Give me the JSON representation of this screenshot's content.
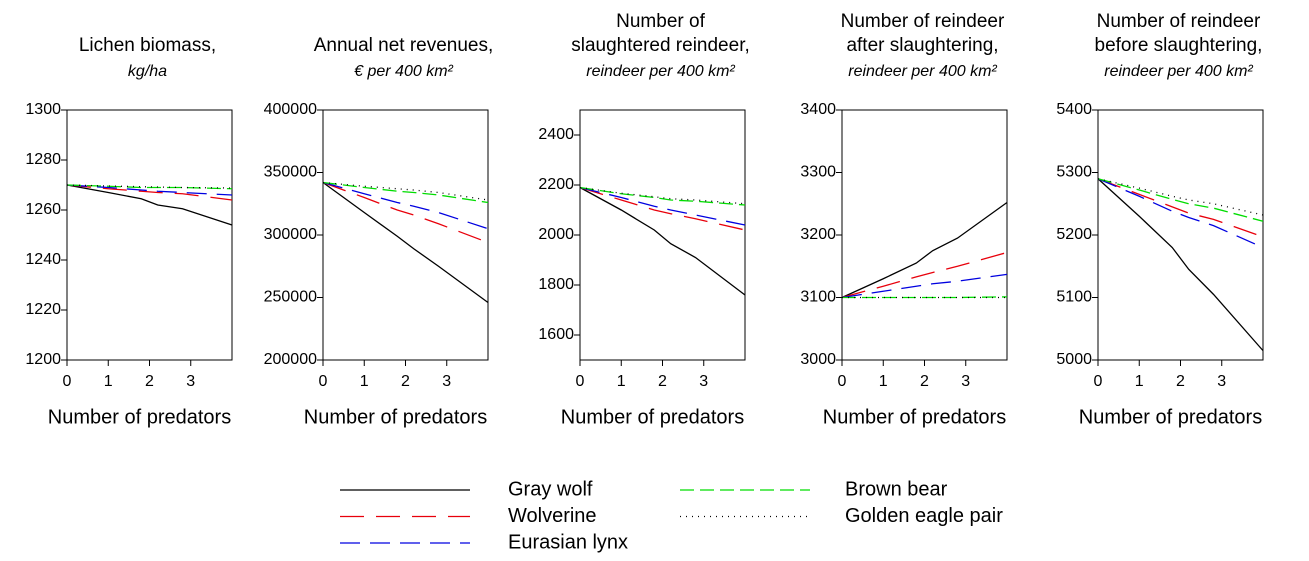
{
  "chart_data": [
    {
      "type": "line",
      "title": [
        "Lichen biomass,"
      ],
      "subtitle": "kg/ha",
      "x_label": "Number of predators",
      "x": [
        0,
        1,
        1.8,
        2.2,
        2.8,
        4
      ],
      "xlim": [
        0,
        4
      ],
      "xticks": [
        0,
        1,
        2,
        3
      ],
      "ylim": [
        1200,
        1300
      ],
      "yticks": [
        1200,
        1220,
        1240,
        1260,
        1280,
        1300
      ],
      "series": [
        {
          "values": [
            1270,
            1267,
            1264.5,
            1262,
            1260.5,
            1254
          ]
        },
        {
          "values": [
            1270,
            1268.5,
            1267.5,
            1267,
            1266.5,
            1264
          ]
        },
        {
          "values": [
            1270,
            1269,
            1268,
            1267.5,
            1267,
            1266
          ]
        },
        {
          "values": [
            1270,
            1269.5,
            1269,
            1269,
            1269,
            1268.5
          ]
        },
        {
          "values": [
            1270,
            1269.6,
            1269.3,
            1269.2,
            1269,
            1268.8
          ]
        }
      ]
    },
    {
      "type": "line",
      "title": [
        "Annual net revenues,"
      ],
      "subtitle": "€ per 400 km²",
      "x_label": "Number of predators",
      "x": [
        0,
        1,
        1.8,
        2.2,
        2.8,
        4
      ],
      "xlim": [
        0,
        4
      ],
      "xticks": [
        0,
        1,
        2,
        3
      ],
      "ylim": [
        200000,
        400000
      ],
      "yticks": [
        200000,
        250000,
        300000,
        350000,
        400000
      ],
      "series": [
        {
          "values": [
            342000,
            318000,
            299000,
            289000,
            275000,
            246000
          ]
        },
        {
          "values": [
            342000,
            330000,
            320000,
            316000,
            309000,
            294000
          ]
        },
        {
          "values": [
            342000,
            333000,
            326000,
            323000,
            318000,
            305000
          ]
        },
        {
          "values": [
            342000,
            338000,
            335000,
            334000,
            332000,
            326000
          ]
        },
        {
          "values": [
            342000,
            339000,
            337000,
            336000,
            334000,
            328000
          ]
        }
      ]
    },
    {
      "type": "line",
      "title": [
        "Number of",
        "slaughtered reindeer,"
      ],
      "subtitle": "reindeer per 400 km²",
      "x_label": "Number of predators",
      "x": [
        0,
        1,
        1.8,
        2.2,
        2.8,
        4
      ],
      "xlim": [
        0,
        4
      ],
      "xticks": [
        0,
        1,
        2,
        3
      ],
      "ylim": [
        1500,
        2500
      ],
      "yticks": [
        1600,
        1800,
        2000,
        2200,
        2400
      ],
      "series": [
        {
          "values": [
            2190,
            2100,
            2020,
            1965,
            1910,
            1760
          ]
        },
        {
          "values": [
            2190,
            2140,
            2100,
            2085,
            2065,
            2020
          ]
        },
        {
          "values": [
            2190,
            2150,
            2115,
            2100,
            2080,
            2040
          ]
        },
        {
          "values": [
            2190,
            2165,
            2150,
            2140,
            2135,
            2120
          ]
        },
        {
          "values": [
            2190,
            2167,
            2153,
            2145,
            2140,
            2125
          ]
        }
      ]
    },
    {
      "type": "line",
      "title": [
        "Number of reindeer",
        "after slaughtering,"
      ],
      "subtitle": "reindeer per 400 km²",
      "x_label": "Number of predators",
      "x": [
        0,
        1,
        1.8,
        2.2,
        2.8,
        4
      ],
      "xlim": [
        0,
        4
      ],
      "xticks": [
        0,
        1,
        2,
        3
      ],
      "ylim": [
        3000,
        3400
      ],
      "yticks": [
        3000,
        3100,
        3200,
        3300,
        3400
      ],
      "series": [
        {
          "values": [
            3100,
            3130,
            3155,
            3175,
            3195,
            3252
          ]
        },
        {
          "values": [
            3100,
            3118,
            3133,
            3140,
            3150,
            3172
          ]
        },
        {
          "values": [
            3100,
            3110,
            3118,
            3122,
            3126,
            3137
          ]
        },
        {
          "values": [
            3100,
            3100,
            3100,
            3100,
            3100,
            3101
          ]
        },
        {
          "values": [
            3100,
            3100,
            3100,
            3100,
            3100,
            3100
          ]
        }
      ]
    },
    {
      "type": "line",
      "title": [
        "Number of reindeer",
        "before slaughtering,"
      ],
      "subtitle": "reindeer per 400 km²",
      "x_label": "Number of predators",
      "x": [
        0,
        1,
        1.8,
        2.2,
        2.8,
        4
      ],
      "xlim": [
        0,
        4
      ],
      "xticks": [
        0,
        1,
        2,
        3
      ],
      "ylim": [
        5000,
        5400
      ],
      "yticks": [
        5000,
        5100,
        5200,
        5300,
        5400
      ],
      "series": [
        {
          "values": [
            5290,
            5230,
            5180,
            5145,
            5105,
            5015
          ]
        },
        {
          "values": [
            5290,
            5265,
            5245,
            5235,
            5225,
            5197
          ]
        },
        {
          "values": [
            5290,
            5262,
            5238,
            5228,
            5215,
            5180
          ]
        },
        {
          "values": [
            5290,
            5272,
            5257,
            5250,
            5243,
            5222
          ]
        },
        {
          "values": [
            5290,
            5275,
            5262,
            5256,
            5250,
            5232
          ]
        }
      ]
    }
  ],
  "legend": {
    "entries": [
      {
        "name": "Gray wolf",
        "color": "#000000",
        "dash": "none"
      },
      {
        "name": "Wolverine",
        "color": "#e8000b",
        "dash": "24 12"
      },
      {
        "name": "Eurasian lynx",
        "color": "#0000e0",
        "dash": "20 10"
      },
      {
        "name": "Brown bear",
        "color": "#00dd00",
        "dash": "14 6"
      },
      {
        "name": "Golden eagle pair",
        "color": "#000000",
        "dash": "1 5"
      }
    ]
  }
}
